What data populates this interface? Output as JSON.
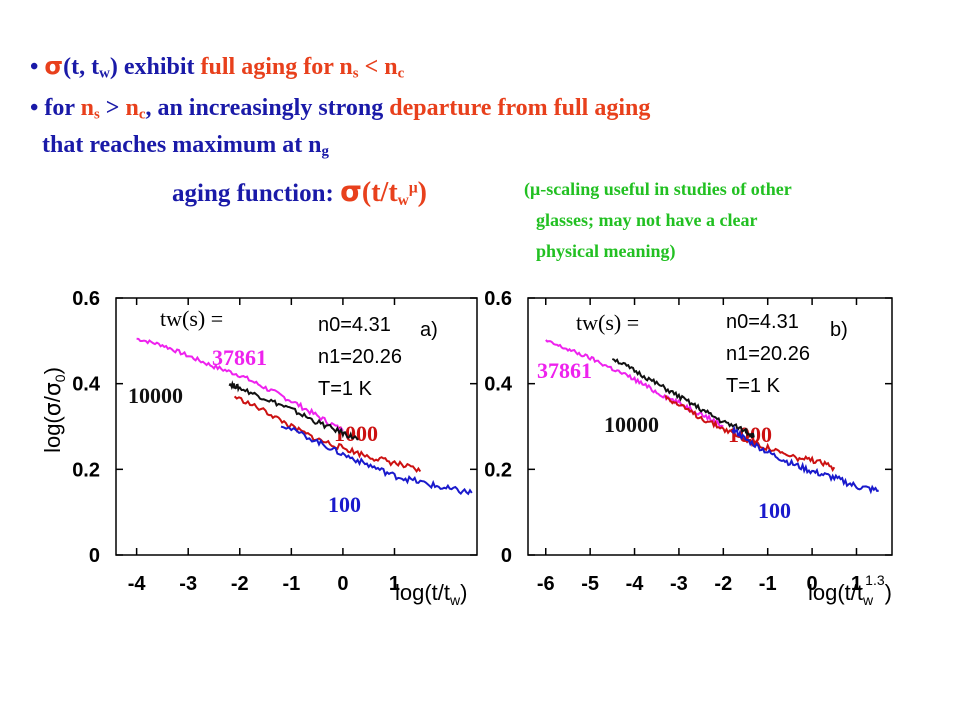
{
  "bullets": {
    "b1": {
      "bullet": "•",
      "sigma": "σ",
      "pre": "(t, t",
      "sub_w": "w",
      "mid": ") exhibit ",
      "highlight": "full aging for n",
      "sub_s": "s",
      "op": " < n",
      "sub_c": "c"
    },
    "b2": {
      "bullet": "•",
      "pre": "for ",
      "n1": "n",
      "sub_s": "s",
      "gt": " > ",
      "n2": "n",
      "sub_c": "c",
      "comma": ", an increasingly strong ",
      "highlight": "departure from full aging"
    },
    "b3": {
      "text": "that reaches maximum at n",
      "sub_g": "g"
    },
    "b4": {
      "pre": "aging function: ",
      "sigma": "σ",
      "open": "(t/t",
      "sub_w": "w",
      "sup_mu": "μ",
      "close": ")"
    }
  },
  "note": {
    "line1": "(μ-scaling useful in studies of other",
    "line2": "glasses; may not have a clear",
    "line3": "physical meaning)"
  },
  "colors": {
    "text_blue": "#1a1aa8",
    "text_red": "#e8401c",
    "text_green": "#22c022",
    "curve_100": "#1a1acc",
    "curve_1000": "#cc1111",
    "curve_10000": "#111111",
    "curve_37861": "#ee22ee"
  },
  "chart_data": [
    {
      "type": "line",
      "panel_label": "a)",
      "ylabel": "log(σ/σ0)",
      "xlabel": "log(t/tw)",
      "xlim": [
        -4.4,
        2.6
      ],
      "ylim": [
        0,
        0.6
      ],
      "xticks": [
        "-4",
        "-3",
        "-2",
        "-1",
        "0",
        "1"
      ],
      "yticks": [
        "0.6",
        "0.4",
        "0.2",
        "0"
      ],
      "params": {
        "l1": "n0=4.31",
        "l2": "n1=20.26",
        "l3": "T=1 K"
      },
      "legend_title": "tw(s) =",
      "series": [
        {
          "name": "37861",
          "x": [
            -4.0,
            -3.5,
            -3.0,
            -2.5,
            -2.0,
            -1.5,
            -1.0,
            -0.5,
            0.0
          ],
          "y": [
            0.505,
            0.49,
            0.465,
            0.44,
            0.42,
            0.39,
            0.36,
            0.325,
            0.29
          ]
        },
        {
          "name": "10000",
          "x": [
            -2.2,
            -2.0,
            -1.5,
            -1.0,
            -0.5,
            0.0,
            0.3
          ],
          "y": [
            0.4,
            0.39,
            0.365,
            0.34,
            0.31,
            0.285,
            0.27
          ]
        },
        {
          "name": "1000",
          "x": [
            -2.1,
            -1.5,
            -1.0,
            -0.5,
            0.0,
            0.5,
            1.0,
            1.5
          ],
          "y": [
            0.37,
            0.335,
            0.3,
            0.27,
            0.25,
            0.23,
            0.215,
            0.195
          ]
        },
        {
          "name": "100",
          "x": [
            -1.2,
            -0.5,
            0.0,
            0.5,
            1.0,
            1.5,
            2.0,
            2.5
          ],
          "y": [
            0.305,
            0.265,
            0.235,
            0.21,
            0.185,
            0.17,
            0.155,
            0.145
          ]
        }
      ]
    },
    {
      "type": "line",
      "panel_label": "b)",
      "ylabel": "",
      "xlabel": "log(t/tw1.3)",
      "xlim": [
        -6.4,
        1.8
      ],
      "ylim": [
        0,
        0.6
      ],
      "xticks": [
        "-6",
        "-5",
        "-4",
        "-3",
        "-2",
        "-1",
        "0",
        "1"
      ],
      "yticks": [
        "0.6",
        "0.4",
        "0.2",
        "0"
      ],
      "params": {
        "l1": "n0=4.31",
        "l2": "n1=20.26",
        "l3": "T=1 K"
      },
      "legend_title": "tw(s) =",
      "series": [
        {
          "name": "37861",
          "x": [
            -6.0,
            -5.5,
            -5.0,
            -4.5,
            -4.0,
            -3.5,
            -3.0,
            -2.5,
            -2.0
          ],
          "y": [
            0.5,
            0.48,
            0.46,
            0.435,
            0.41,
            0.38,
            0.355,
            0.33,
            0.3
          ]
        },
        {
          "name": "10000",
          "x": [
            -4.5,
            -4.0,
            -3.5,
            -3.0,
            -2.5,
            -2.0,
            -1.5,
            -1.3
          ],
          "y": [
            0.46,
            0.43,
            0.4,
            0.37,
            0.34,
            0.31,
            0.29,
            0.275
          ]
        },
        {
          "name": "1000",
          "x": [
            -3.3,
            -3.0,
            -2.5,
            -2.0,
            -1.5,
            -1.0,
            -0.5,
            0.0,
            0.5
          ],
          "y": [
            0.37,
            0.35,
            0.32,
            0.295,
            0.27,
            0.25,
            0.23,
            0.22,
            0.205
          ]
        },
        {
          "name": "100",
          "x": [
            -1.8,
            -1.5,
            -1.0,
            -0.5,
            0.0,
            0.5,
            1.0,
            1.5
          ],
          "y": [
            0.295,
            0.27,
            0.24,
            0.215,
            0.195,
            0.18,
            0.16,
            0.15
          ]
        }
      ]
    }
  ]
}
